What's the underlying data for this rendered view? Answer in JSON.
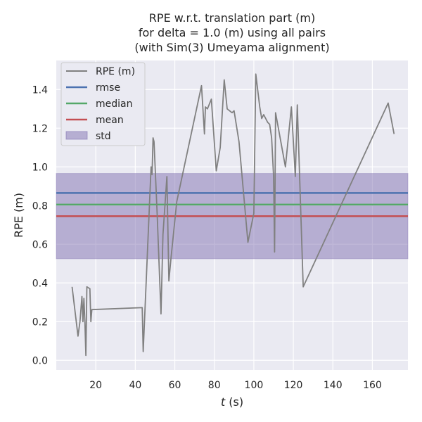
{
  "chart_data": {
    "type": "line",
    "title_lines": [
      "RPE w.r.t. translation part (m)",
      "for delta = 1.0 (m) using all pairs",
      "(with Sim(3) Umeyama alignment)"
    ],
    "xlabel_italic": "t",
    "xlabel_suffix": " (s)",
    "ylabel": "RPE (m)",
    "xlim": [
      0,
      178
    ],
    "ylim": [
      -0.05,
      1.55
    ],
    "xticks": [
      20,
      40,
      60,
      80,
      100,
      120,
      140,
      160
    ],
    "yticks": [
      0.0,
      0.2,
      0.4,
      0.6,
      0.8,
      1.0,
      1.2,
      1.4
    ],
    "grid": true,
    "legend_position": "top-left",
    "legend": [
      "RPE (m)",
      "rmse",
      "median",
      "mean",
      "std"
    ],
    "colors": {
      "rpe": "#808080",
      "rmse": "#4c72b0",
      "median": "#55a868",
      "mean": "#c44e52",
      "std": "#8172b2",
      "background": "#eaeaf2"
    },
    "stats": {
      "rmse": 0.865,
      "median": 0.805,
      "mean": 0.745,
      "std_low": 0.525,
      "std_high": 0.966
    },
    "series": [
      {
        "name": "RPE (m)",
        "x": [
          8,
          11,
          12,
          13,
          13.5,
          14,
          14.5,
          15,
          15.5,
          17,
          17.5,
          18,
          43.5,
          44,
          48,
          48.5,
          49,
          49.5,
          51,
          53,
          54,
          56,
          57,
          58,
          61,
          73.5,
          75,
          75.5,
          76.5,
          78.5,
          81,
          83,
          85,
          86.5,
          89,
          90,
          92.5,
          97,
          100,
          101,
          103,
          104,
          105,
          107,
          108,
          109,
          110,
          110.5,
          111,
          116,
          119,
          121,
          122,
          125,
          168,
          171
        ],
        "y": [
          0.38,
          0.125,
          0.2,
          0.33,
          0.2,
          0.32,
          0.2,
          0.025,
          0.38,
          0.37,
          0.2,
          0.262,
          0.272,
          0.045,
          1.0,
          0.96,
          1.15,
          1.13,
          0.77,
          0.24,
          0.65,
          0.95,
          0.41,
          0.52,
          0.82,
          1.42,
          1.17,
          1.31,
          1.3,
          1.35,
          0.98,
          1.1,
          1.45,
          1.3,
          1.28,
          1.29,
          1.13,
          0.61,
          0.76,
          1.48,
          1.31,
          1.25,
          1.27,
          1.23,
          1.22,
          1.15,
          0.95,
          0.56,
          1.28,
          1.0,
          1.31,
          0.95,
          1.32,
          0.38,
          1.33,
          1.17
        ]
      }
    ]
  }
}
